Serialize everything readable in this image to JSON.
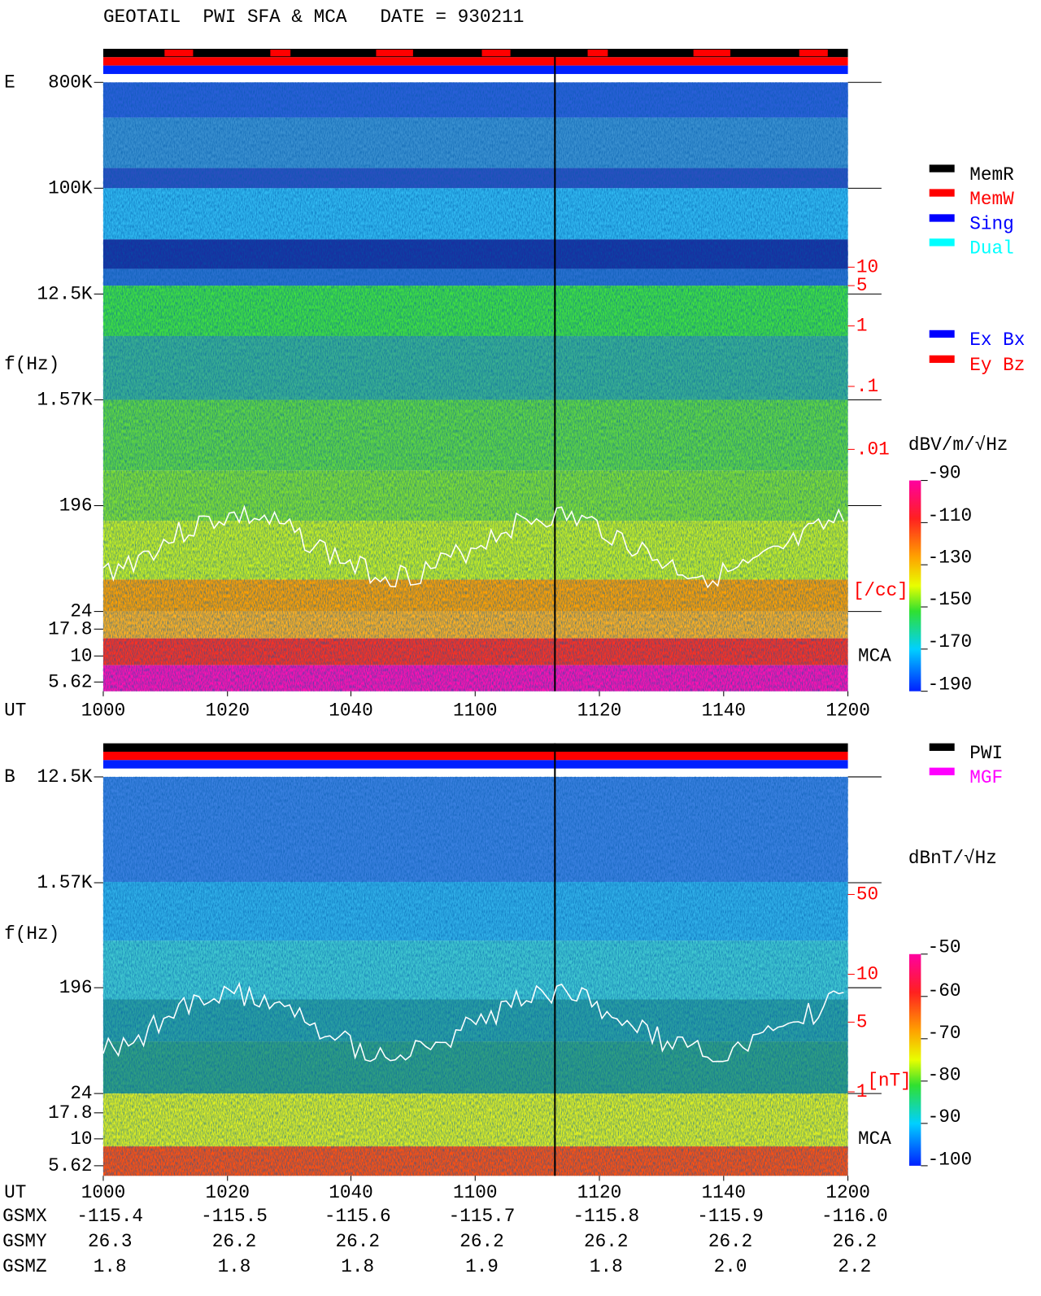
{
  "header": {
    "title": "GEOTAIL  PWI SFA & MCA   DATE = 930211"
  },
  "panels": [
    {
      "label": "E",
      "frequency_axis": {
        "label": "f(Hz)",
        "ticks": [
          "800K",
          "100K",
          "12.5K",
          "1.57K",
          "196",
          "24",
          "17.8",
          "10",
          "5.62"
        ]
      },
      "density_axis": {
        "ticks": [
          "10",
          "5",
          "1",
          ".1",
          ".01"
        ],
        "unit": "[/cc]",
        "color": "#ff0000"
      },
      "mca_label": "MCA",
      "time_axis": {
        "label": "UT",
        "ticks": [
          "1000",
          "1020",
          "1040",
          "1100",
          "1120",
          "1140",
          "1200"
        ]
      },
      "legends": [
        [
          {
            "label": "MemR",
            "color": "#000000"
          },
          {
            "label": "MemW",
            "color": "#ff0000"
          },
          {
            "label": "Sing",
            "color": "#0000ff"
          },
          {
            "label": "Dual",
            "color": "#00ffff"
          }
        ],
        [
          {
            "label": "Ex Bx",
            "color": "#0000ff"
          },
          {
            "label": "Ey Bz",
            "color": "#ff0000"
          }
        ]
      ],
      "colorbar": {
        "unit": "dBV/m/√Hz",
        "ticks": [
          "-90",
          "-110",
          "-130",
          "-150",
          "-170",
          "-190"
        ]
      }
    },
    {
      "label": "B",
      "frequency_axis": {
        "label": "f(Hz)",
        "ticks": [
          "12.5K",
          "1.57K",
          "196",
          "24",
          "17.8",
          "10",
          "5.62"
        ]
      },
      "density_axis": {
        "ticks": [
          "50",
          "10",
          "5",
          "1"
        ],
        "unit": "[nT]",
        "color": "#ff0000"
      },
      "mca_label": "MCA",
      "time_axis": {
        "label": "UT",
        "ticks": [
          "1000",
          "1020",
          "1040",
          "1100",
          "1120",
          "1140",
          "1200"
        ]
      },
      "legends": [
        [
          {
            "label": "PWI",
            "color": "#000000"
          },
          {
            "label": "MGF",
            "color": "#ff00ff"
          }
        ]
      ],
      "colorbar": {
        "unit": "dBnT/√Hz",
        "ticks": [
          "-50",
          "-60",
          "-70",
          "-80",
          "-90",
          "-100"
        ]
      }
    }
  ],
  "orbit": {
    "rows": [
      {
        "label": "GSMX",
        "values": [
          "-115.4",
          "-115.5",
          "-115.6",
          "-115.7",
          "-115.8",
          "-115.9",
          "-116.0"
        ]
      },
      {
        "label": "GSMY",
        "values": [
          "26.3",
          "26.2",
          "26.2",
          "26.2",
          "26.2",
          "26.2",
          "26.2"
        ]
      },
      {
        "label": "GSMZ",
        "values": [
          "1.8",
          "1.8",
          "1.8",
          "1.9",
          "1.8",
          "2.0",
          "2.2"
        ]
      }
    ]
  }
}
